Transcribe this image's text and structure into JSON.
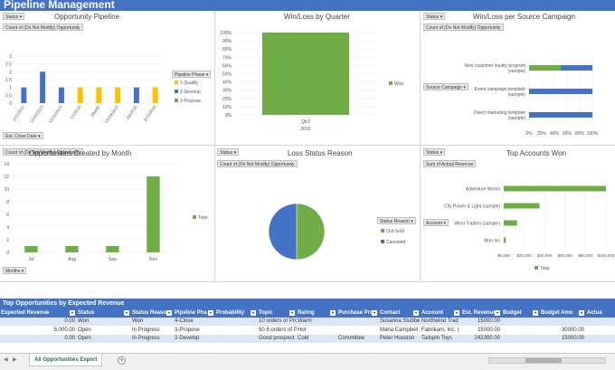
{
  "title": "Pipeline Management",
  "panels": {
    "opportunity_pipeline": {
      "status_btn": "Status",
      "title": "Opportunity Pipeline",
      "value_btn": "Count of (Do Not Modify) Opportunity",
      "axis_btn": "Est. Close Date",
      "legend_title": "Pipeline Phase"
    },
    "win_loss_quarter": {
      "title": "Win/Loss by Quarter"
    },
    "win_loss_campaign": {
      "status_btn": "Status",
      "title": "Win/Loss per Source Campaign",
      "value_btn": "Count of (Do Not Modify) Opportunity",
      "axis_btn": "Source Campaign"
    },
    "opps_by_month": {
      "value_btn": "Count of (Do Not Modify) Opportunity",
      "title": "Opportunities Created by Month",
      "axis_btn": "Months"
    },
    "loss_status": {
      "status_btn": "Status",
      "title": "Loss Status Reason",
      "value_btn": "Count of (Do Not Modify) Opportunity",
      "legend_btn": "Status Reason"
    },
    "top_accounts": {
      "status_btn": "Status",
      "title": "Top Accounts Won",
      "value_btn": "Sum of Actual Revenue",
      "axis_btn": "Account"
    }
  },
  "chart_data": [
    {
      "type": "bar",
      "title": "Opportunity Pipeline",
      "categories": [
        "12/1/2015",
        "12/20/2015",
        "12/31/2015",
        "1/1/2016",
        "(blank)",
        "12/23/2015",
        "4/6/2016",
        "3/15/2016"
      ],
      "ylim": [
        0,
        3
      ],
      "yticks": [
        "3",
        "2.5",
        "2",
        "1.5",
        "1",
        "0.5",
        "0"
      ],
      "series": [
        {
          "name": "1-Qualify",
          "color": "#ffc000",
          "values": [
            0,
            0,
            0,
            1,
            1,
            1,
            0,
            1
          ]
        },
        {
          "name": "2-Develop",
          "color": "#4472c4",
          "values": [
            1,
            2,
            1,
            0,
            0,
            0,
            1,
            0
          ]
        },
        {
          "name": "3-Propose",
          "color": "#70ad47",
          "values": [
            0,
            0,
            0,
            0,
            0,
            0,
            0,
            0
          ]
        }
      ]
    },
    {
      "type": "bar",
      "title": "Win/Loss by Quarter",
      "categories": [
        "Qtr3"
      ],
      "category_group": "2015",
      "yticks": [
        "100%",
        "90%",
        "80%",
        "70%",
        "60%",
        "50%",
        "40%",
        "30%",
        "20%",
        "10%",
        "0%"
      ],
      "ylim": [
        0,
        100
      ],
      "series": [
        {
          "name": "Won",
          "color": "#70ad47",
          "values": [
            100
          ]
        }
      ]
    },
    {
      "type": "bar",
      "orientation": "horizontal",
      "title": "Win/Loss per Source Campaign",
      "categories": [
        "New customer loyalty program (sample)",
        "Event campaign template (sample)",
        "Direct marketing template (sample)"
      ],
      "xticks": [
        "0%",
        "20%",
        "40%",
        "60%",
        "80%",
        "100%"
      ],
      "xlim": [
        0,
        100
      ],
      "series": [
        {
          "name": "Won",
          "color": "#70ad47",
          "values": [
            50,
            0,
            0
          ]
        },
        {
          "name": "Open",
          "color": "#4472c4",
          "values": [
            50,
            100,
            100
          ]
        }
      ]
    },
    {
      "type": "bar",
      "title": "Opportunities Created by Month",
      "categories": [
        "Jul",
        "Aug",
        "Sep",
        "Nov"
      ],
      "ylim": [
        0,
        14
      ],
      "yticks": [
        "14",
        "12",
        "10",
        "8",
        "6",
        "4",
        "2",
        "0"
      ],
      "series": [
        {
          "name": "Total",
          "color": "#70ad47",
          "values": [
            1,
            1,
            1,
            12
          ]
        }
      ]
    },
    {
      "type": "pie",
      "title": "Loss Status Reason",
      "series": [
        {
          "name": "Out-Sold",
          "color": "#70ad47",
          "value": 50
        },
        {
          "name": "Canceled",
          "color": "#4472c4",
          "value": 50
        }
      ]
    },
    {
      "type": "bar",
      "orientation": "horizontal",
      "title": "Top Accounts Won",
      "categories": [
        "Adventure Works",
        "City Power & Light (sample)",
        "Wind Traders (sample)",
        "Mon Inc"
      ],
      "xlim": [
        0,
        100000
      ],
      "xticks": [
        "$0,000",
        "$20,000",
        "$40,000",
        "$60,000",
        "$80,000",
        "$100,000"
      ],
      "series": [
        {
          "name": "Total",
          "color": "#70ad47",
          "values": [
            100000,
            35000,
            13000,
            2000
          ]
        }
      ]
    }
  ],
  "table": {
    "title": "Top Opportunities by Expected Revenue",
    "columns": [
      "Expected Revenue",
      "Status",
      "Status Reaso",
      "Pipeline Pha",
      "Probability",
      "Topic",
      "Rating",
      "Purchase Pro",
      "Contact",
      "Account",
      "Est. Revenue",
      "Budget",
      "Budget Amo",
      "Actua"
    ],
    "rows": [
      [
        "0.00",
        "Won",
        "Won",
        "4-Close",
        "",
        "10 orders or Prc",
        "Warm",
        "",
        "Susanna Stubbe",
        "Northwind Trad",
        "15000.00",
        "",
        "",
        ""
      ],
      [
        "5,000.00",
        "Open",
        "In Progress",
        "3-Propose",
        "",
        "50 6 orders of Proc",
        "Hot",
        "",
        "Maria Campbell",
        "Fabrikam, Inc. (",
        "15000.00",
        "",
        "30000.00",
        ""
      ],
      [
        "0.00",
        "Open",
        "In Progress",
        "2-Develop",
        "",
        "Good prospect",
        "Cold",
        "Committee",
        "Peter Houston",
        "Tailspin Toys",
        "242300.00",
        "",
        "15000.00",
        ""
      ]
    ]
  },
  "sheet_tab": "All Opportunities Export",
  "colors": {
    "accent": "#4472c4",
    "green": "#70ad47",
    "yellow": "#ffc000"
  }
}
